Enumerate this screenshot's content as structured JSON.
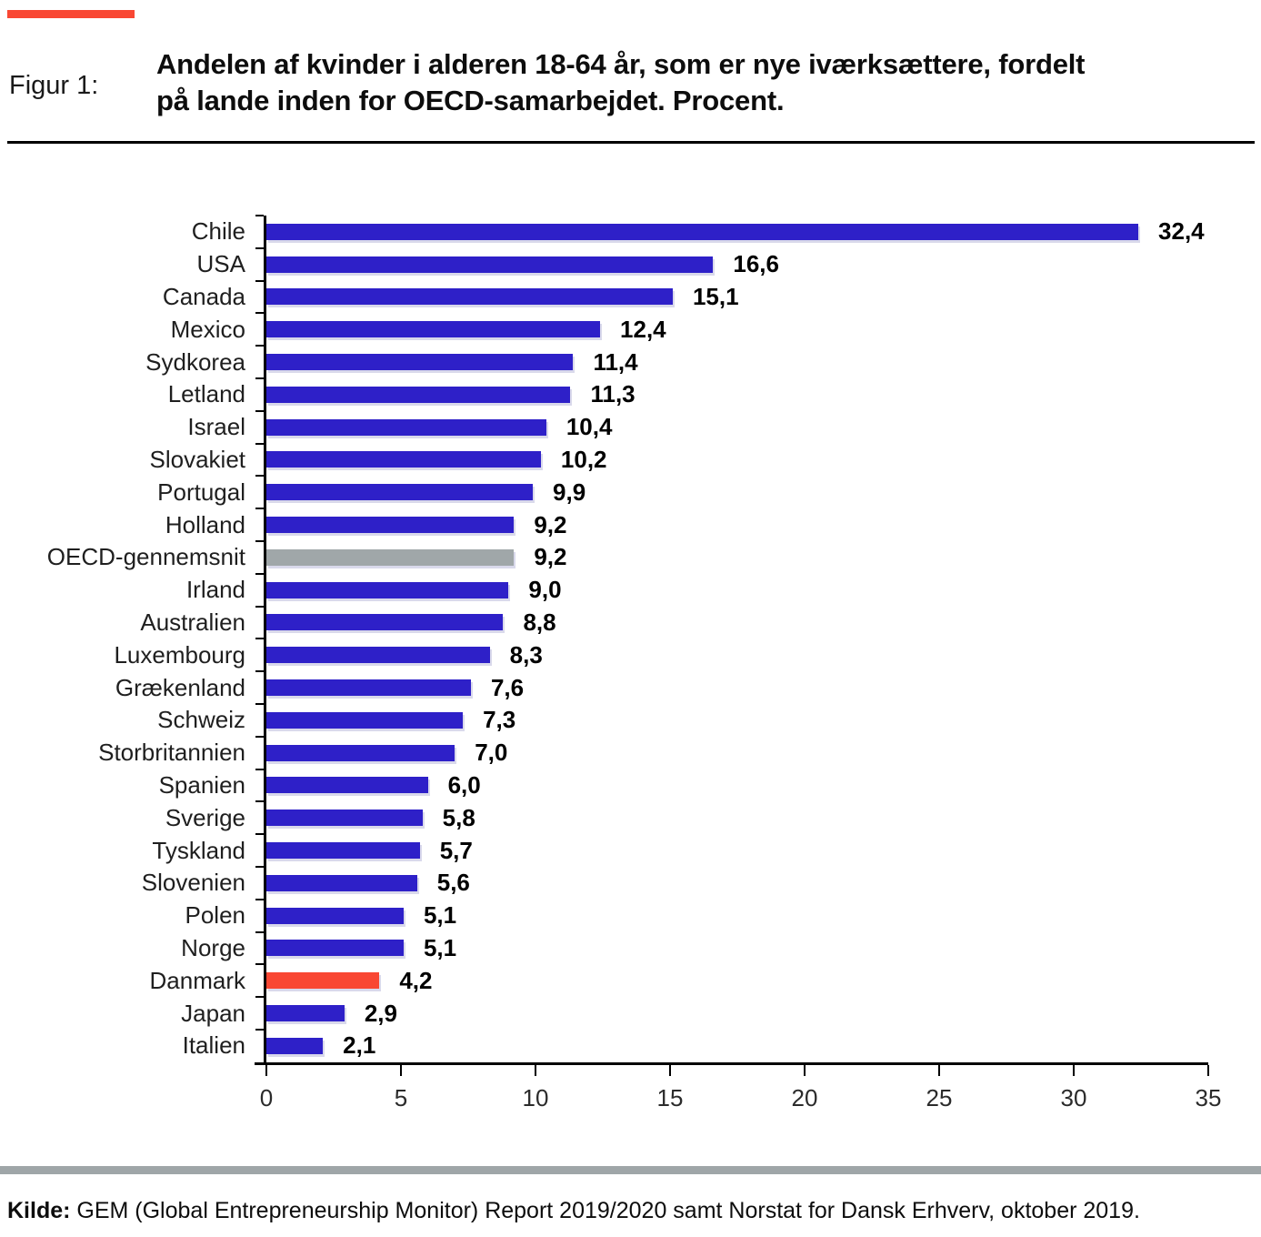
{
  "figure": {
    "label": "Figur 1:",
    "title_line1": "Andelen af kvinder i alderen 18-64 år, som er nye iværksættere, fordelt",
    "title_line2": "på lande inden for OECD-samarbejdet. Procent."
  },
  "source": {
    "prefix": "Kilde:",
    "text": " GEM (Global Entrepreneurship Monitor) Report 2019/2020 samt Norstat for Dansk Erhverv, oktober 2019."
  },
  "chart_data": {
    "type": "bar",
    "orientation": "horizontal",
    "title": "Andelen af kvinder i alderen 18-64 år, som er nye iværksættere, fordelt på lande inden for OECD-samarbejdet. Procent.",
    "categories": [
      "Chile",
      "USA",
      "Canada",
      "Mexico",
      "Sydkorea",
      "Letland",
      "Israel",
      "Slovakiet",
      "Portugal",
      "Holland",
      "OECD-gennemsnit",
      "Irland",
      "Australien",
      "Luxembourg",
      "Grækenland",
      "Schweiz",
      "Storbritannien",
      "Spanien",
      "Sverige",
      "Tyskland",
      "Slovenien",
      "Polen",
      "Norge",
      "Danmark",
      "Japan",
      "Italien"
    ],
    "values": [
      32.4,
      16.6,
      15.1,
      12.4,
      11.4,
      11.3,
      10.4,
      10.2,
      9.9,
      9.2,
      9.2,
      9.0,
      8.8,
      8.3,
      7.6,
      7.3,
      7.0,
      6.0,
      5.8,
      5.7,
      5.6,
      5.1,
      5.1,
      4.2,
      2.9,
      2.1
    ],
    "value_labels": [
      "32,4",
      "16,6",
      "15,1",
      "12,4",
      "11,4",
      "11,3",
      "10,4",
      "10,2",
      "9,9",
      "9,2",
      "9,2",
      "9,0",
      "8,8",
      "8,3",
      "7,6",
      "7,3",
      "7,0",
      "6,0",
      "5,8",
      "5,7",
      "5,6",
      "5,1",
      "5,1",
      "4,2",
      "2,9",
      "2,1"
    ],
    "bar_colors": [
      "#2E20C8",
      "#2E20C8",
      "#2E20C8",
      "#2E20C8",
      "#2E20C8",
      "#2E20C8",
      "#2E20C8",
      "#2E20C8",
      "#2E20C8",
      "#2E20C8",
      "#A0A7A9",
      "#2E20C8",
      "#2E20C8",
      "#2E20C8",
      "#2E20C8",
      "#2E20C8",
      "#2E20C8",
      "#2E20C8",
      "#2E20C8",
      "#2E20C8",
      "#2E20C8",
      "#2E20C8",
      "#2E20C8",
      "#F94733",
      "#2E20C8",
      "#2E20C8"
    ],
    "xlim": [
      0,
      35
    ],
    "x_ticks": [
      "0",
      "5",
      "10",
      "15",
      "20",
      "25",
      "30",
      "35"
    ],
    "grid": false,
    "legend": "none",
    "colors": {
      "default_bar": "#2E20C8",
      "average_bar": "#A0A7A9",
      "highlight_bar": "#F94733",
      "accent_dash": "#F94733",
      "divider": "#9FA6A8"
    }
  }
}
